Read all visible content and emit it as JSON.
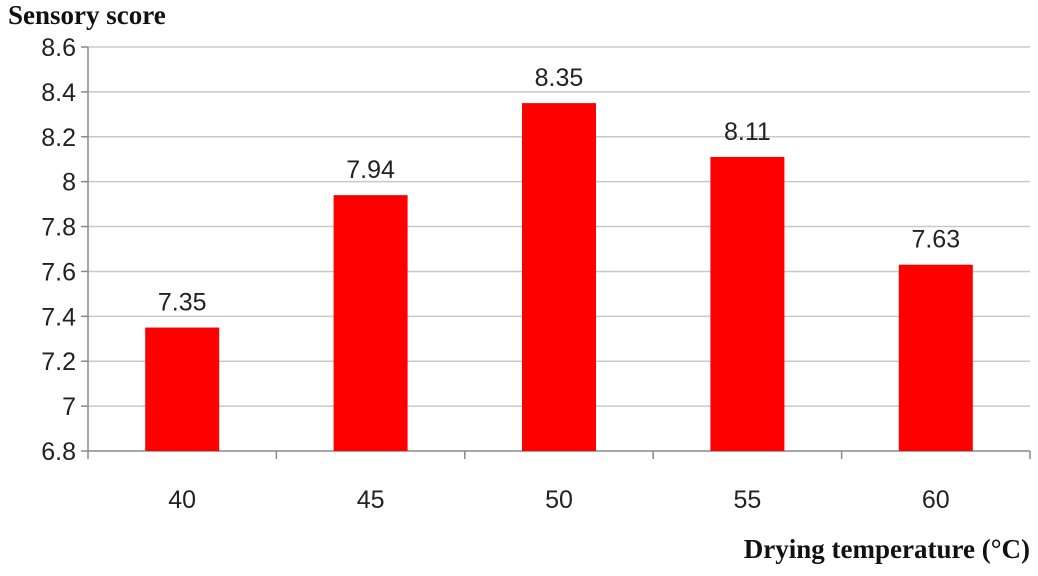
{
  "chart_data": {
    "type": "bar",
    "ylabel": "Sensory score",
    "xlabel": "Drying temperature (°C)",
    "categories": [
      "40",
      "45",
      "50",
      "55",
      "60"
    ],
    "values": [
      7.35,
      7.94,
      8.35,
      8.11,
      7.63
    ],
    "data_labels": [
      "7.35",
      "7.94",
      "8.35",
      "8.11",
      "7.63"
    ],
    "ylim": [
      6.8,
      8.6
    ],
    "yticks": [
      "6.8",
      "7",
      "7.2",
      "7.4",
      "7.6",
      "7.8",
      "8",
      "8.2",
      "8.4",
      "8.6"
    ],
    "grid": true,
    "legend": "none",
    "bar_color": "#ff0000",
    "grid_color": "#c8c8c8"
  }
}
